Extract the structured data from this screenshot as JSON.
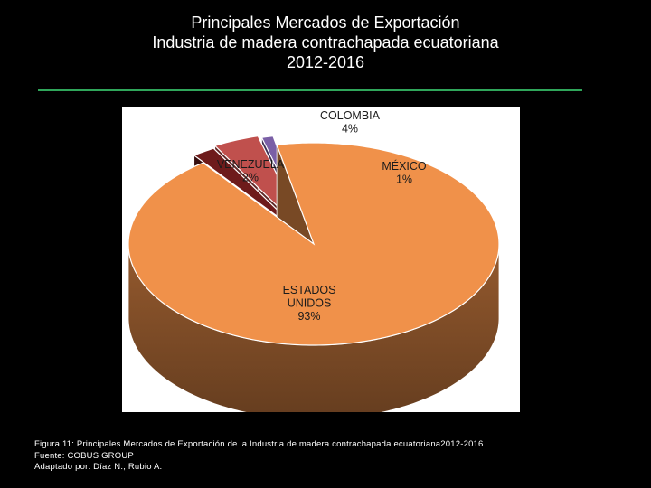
{
  "slide": {
    "title_lines": [
      "Principales Mercados de Exportación",
      "Industria de madera contrachapada ecuatoriana",
      "2012-2016"
    ],
    "rule_color": "#2fa65a",
    "caption_lines": [
      "Figura 11: Principales Mercados de Exportación de la Industria de madera contrachapada ecuatoriana2012-2016",
      "Fuente: COBUS GROUP",
      "Adaptado por: Díaz N., Rubio A."
    ]
  },
  "chart_data": {
    "type": "pie",
    "style": "3d-exploded",
    "slices": [
      {
        "name": "ESTADOS UNIDOS",
        "label_lines": [
          "ESTADOS",
          "UNIDOS"
        ],
        "value": 93,
        "value_label": "93%",
        "color": "#f0914a"
      },
      {
        "name": "VENEZUELA",
        "label_lines": [
          "VENEZUELA"
        ],
        "value": 2,
        "value_label": "2%",
        "color": "#6e1b1b"
      },
      {
        "name": "COLOMBIA",
        "label_lines": [
          "COLOMBIA"
        ],
        "value": 4,
        "value_label": "4%",
        "color": "#c0504d"
      },
      {
        "name": "MÉXICO",
        "label_lines": [
          "MÉXICO"
        ],
        "value": 1,
        "value_label": "1%",
        "color": "#7a5fa6"
      }
    ],
    "legend": "none"
  }
}
